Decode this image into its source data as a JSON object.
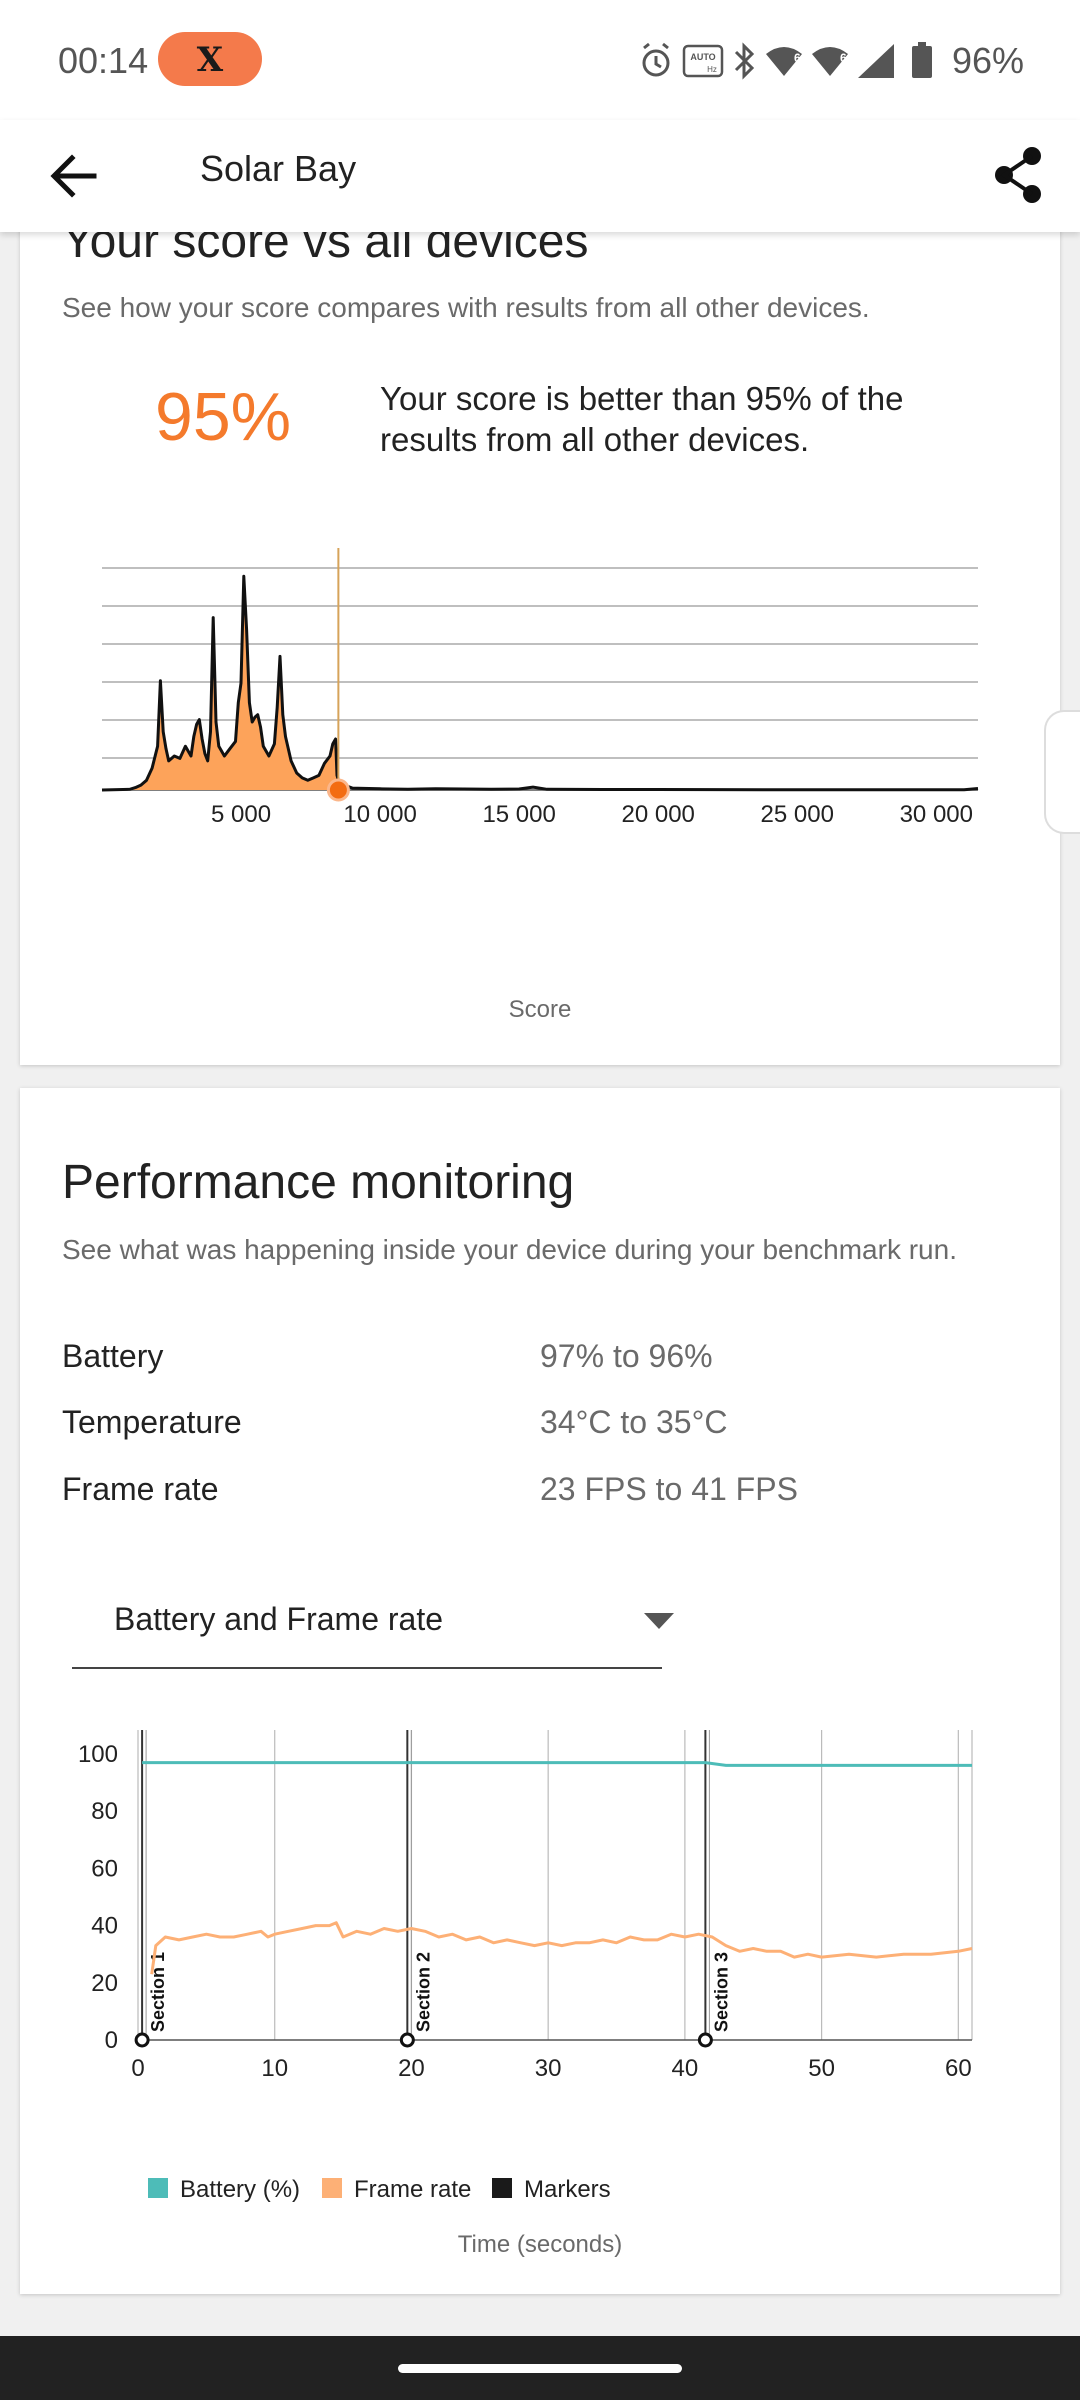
{
  "status_bar": {
    "time": "00:14",
    "notification_badge": "X",
    "icons": [
      "alarm-icon",
      "auto-hz-icon",
      "bluetooth-icon",
      "wifi-6-icon",
      "wifi-6-icon",
      "signal-icon",
      "battery-icon"
    ],
    "battery_percent": "96%",
    "auto_label": "AUTO",
    "hz_label": "Hz"
  },
  "app_bar": {
    "title": "Solar Bay",
    "back_icon": "arrow-back-icon",
    "share_icon": "share-icon"
  },
  "score_card": {
    "title": "Your score vs all devices",
    "subtitle": "See how your score compares with results from all other devices.",
    "percentile": "95%",
    "percentile_text": "Your score is better than 95% of the results from all other devices.",
    "chart_data": {
      "type": "area",
      "xlabel": "Score",
      "x_ticks": [
        "5 000",
        "10 000",
        "15 000",
        "20 000",
        "25 000",
        "30 000"
      ],
      "xlim": [
        0,
        31500
      ],
      "your_score": 8500,
      "colors": {
        "area": "#fda35a",
        "line": "#111111",
        "marker": "#f36c12",
        "score_line": "#d6a35a"
      },
      "distribution": [
        [
          0,
          0
        ],
        [
          1000,
          0.3
        ],
        [
          1200,
          1
        ],
        [
          1400,
          2
        ],
        [
          1600,
          4
        ],
        [
          1800,
          9
        ],
        [
          2000,
          18
        ],
        [
          2100,
          45
        ],
        [
          2200,
          24
        ],
        [
          2300,
          17
        ],
        [
          2400,
          12
        ],
        [
          2600,
          14
        ],
        [
          2800,
          13
        ],
        [
          3000,
          18
        ],
        [
          3200,
          14
        ],
        [
          3300,
          22
        ],
        [
          3400,
          27
        ],
        [
          3500,
          29
        ],
        [
          3600,
          21
        ],
        [
          3700,
          15
        ],
        [
          3800,
          12
        ],
        [
          3900,
          24
        ],
        [
          4000,
          71
        ],
        [
          4100,
          28
        ],
        [
          4200,
          18
        ],
        [
          4400,
          14
        ],
        [
          4600,
          17
        ],
        [
          4800,
          20
        ],
        [
          4900,
          36
        ],
        [
          5000,
          44
        ],
        [
          5100,
          88
        ],
        [
          5200,
          66
        ],
        [
          5300,
          36
        ],
        [
          5400,
          28
        ],
        [
          5500,
          30
        ],
        [
          5600,
          31
        ],
        [
          5700,
          26
        ],
        [
          5800,
          18
        ],
        [
          6000,
          14
        ],
        [
          6200,
          19
        ],
        [
          6300,
          34
        ],
        [
          6400,
          55
        ],
        [
          6500,
          31
        ],
        [
          6600,
          22
        ],
        [
          6800,
          12
        ],
        [
          7000,
          7
        ],
        [
          7200,
          5
        ],
        [
          7400,
          4
        ],
        [
          7600,
          5
        ],
        [
          7800,
          6
        ],
        [
          8000,
          11
        ],
        [
          8200,
          14
        ],
        [
          8300,
          19
        ],
        [
          8400,
          21
        ],
        [
          8450,
          6
        ],
        [
          8500,
          4
        ],
        [
          8700,
          2
        ],
        [
          9000,
          0.8
        ],
        [
          10000,
          0.5
        ],
        [
          11000,
          0.3
        ],
        [
          12000,
          0.5
        ],
        [
          13000,
          0.4
        ],
        [
          14000,
          0.3
        ],
        [
          15000,
          0.4
        ],
        [
          15500,
          1.2
        ],
        [
          16000,
          0.3
        ],
        [
          18000,
          0.2
        ],
        [
          20000,
          0.2
        ],
        [
          22000,
          0.15
        ],
        [
          25000,
          0.1
        ],
        [
          28000,
          0.1
        ],
        [
          31000,
          0.1
        ],
        [
          31500,
          0.6
        ]
      ]
    }
  },
  "perf_card": {
    "title": "Performance monitoring",
    "subtitle": "See what was happening inside your device during your benchmark run.",
    "stats": [
      {
        "label": "Battery",
        "value": "97% to 96%"
      },
      {
        "label": "Temperature",
        "value": "34°C to 35°C"
      },
      {
        "label": "Frame rate",
        "value": "23 FPS to 41 FPS"
      }
    ],
    "dropdown": {
      "selected": "Battery and Frame rate",
      "icon": "dropdown-arrow-icon"
    },
    "chart_data": {
      "type": "line",
      "xlabel": "Time (seconds)",
      "xlim": [
        0,
        61
      ],
      "ylim": [
        0,
        100
      ],
      "x_ticks": [
        0,
        10,
        20,
        30,
        40,
        50,
        60
      ],
      "y_ticks": [
        0,
        20,
        40,
        60,
        80,
        100
      ],
      "markers": [
        {
          "x": 0.3,
          "label": "Section 1"
        },
        {
          "x": 19.7,
          "label": "Section 2"
        },
        {
          "x": 41.5,
          "label": "Section 3"
        }
      ],
      "legend": [
        {
          "name": "Battery (%)",
          "color": "#4dbcb8"
        },
        {
          "name": "Frame rate",
          "color": "#fdb076"
        },
        {
          "name": "Markers",
          "color": "#1a1a1a"
        }
      ],
      "series": [
        {
          "name": "Battery (%)",
          "color": "#4dbcb8",
          "points": [
            [
              0.3,
              97
            ],
            [
              41.5,
              97
            ],
            [
              43,
              96
            ],
            [
              61,
              96
            ]
          ]
        },
        {
          "name": "Frame rate",
          "color": "#fdb076",
          "points": [
            [
              1,
              23
            ],
            [
              1.3,
              33
            ],
            [
              2,
              36
            ],
            [
              3,
              35
            ],
            [
              4,
              36
            ],
            [
              5,
              37
            ],
            [
              6,
              36
            ],
            [
              7,
              36
            ],
            [
              8,
              37
            ],
            [
              9,
              38
            ],
            [
              9.5,
              36
            ],
            [
              10,
              37
            ],
            [
              11,
              38
            ],
            [
              12,
              39
            ],
            [
              13,
              40
            ],
            [
              14,
              40
            ],
            [
              14.5,
              41
            ],
            [
              15,
              36
            ],
            [
              16,
              38
            ],
            [
              17,
              37
            ],
            [
              18,
              39
            ],
            [
              19,
              38
            ],
            [
              20,
              39
            ],
            [
              21,
              38
            ],
            [
              22,
              36
            ],
            [
              23,
              37
            ],
            [
              24,
              35
            ],
            [
              25,
              36
            ],
            [
              26,
              34
            ],
            [
              27,
              35
            ],
            [
              28,
              34
            ],
            [
              29,
              33
            ],
            [
              30,
              34
            ],
            [
              31,
              33
            ],
            [
              32,
              34
            ],
            [
              33,
              34
            ],
            [
              34,
              35
            ],
            [
              35,
              34
            ],
            [
              36,
              36
            ],
            [
              37,
              35
            ],
            [
              38,
              35
            ],
            [
              39,
              37
            ],
            [
              40,
              36
            ],
            [
              41,
              37
            ],
            [
              42,
              36
            ],
            [
              43,
              33
            ],
            [
              44,
              31
            ],
            [
              45,
              32
            ],
            [
              46,
              31
            ],
            [
              47,
              31
            ],
            [
              48,
              29
            ],
            [
              49,
              30
            ],
            [
              50,
              29
            ],
            [
              52,
              30
            ],
            [
              54,
              29
            ],
            [
              56,
              30
            ],
            [
              58,
              30
            ],
            [
              60,
              31
            ],
            [
              61,
              32
            ]
          ]
        }
      ]
    }
  }
}
